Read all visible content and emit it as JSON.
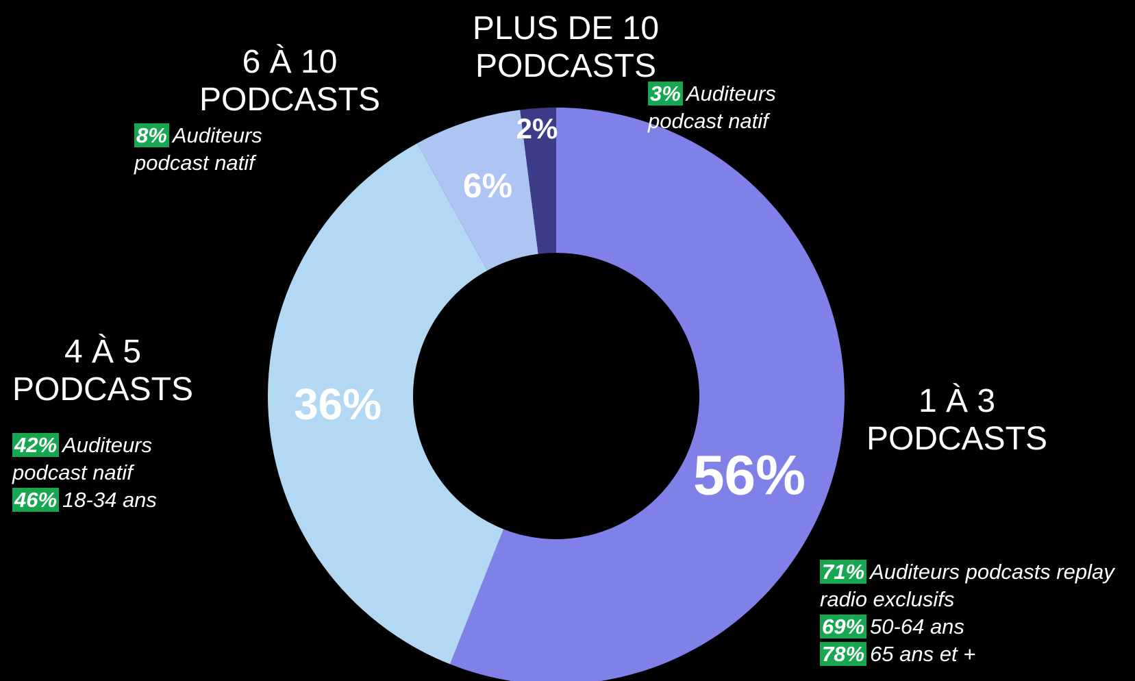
{
  "chart_data": {
    "type": "donut",
    "categories": [
      "1 À 3 PODCASTS",
      "4 À 5 PODCASTS",
      "6 À 10 PODCASTS",
      "PLUS DE 10 PODCASTS"
    ],
    "values": [
      56,
      36,
      6,
      2
    ],
    "value_labels": [
      "56%",
      "36%",
      "6%",
      "2%"
    ],
    "colors": [
      "#8080e9",
      "#b2d8f4",
      "#aec4f3",
      "#3c3c88"
    ],
    "annotations": [
      [
        {
          "pct": "71%",
          "text": "Auditeurs podcasts replay radio exclusifs"
        },
        {
          "pct": "69%",
          "text": "50-64 ans"
        },
        {
          "pct": "78%",
          "text": "65 ans et +"
        }
      ],
      [
        {
          "pct": "42%",
          "text": "Auditeurs podcast natif"
        },
        {
          "pct": "46%",
          "text": "18-34 ans"
        }
      ],
      [
        {
          "pct": "8%",
          "text": "Auditeurs podcast natif"
        }
      ],
      [
        {
          "pct": "3%",
          "text": "Auditeurs podcast natif"
        }
      ]
    ]
  }
}
